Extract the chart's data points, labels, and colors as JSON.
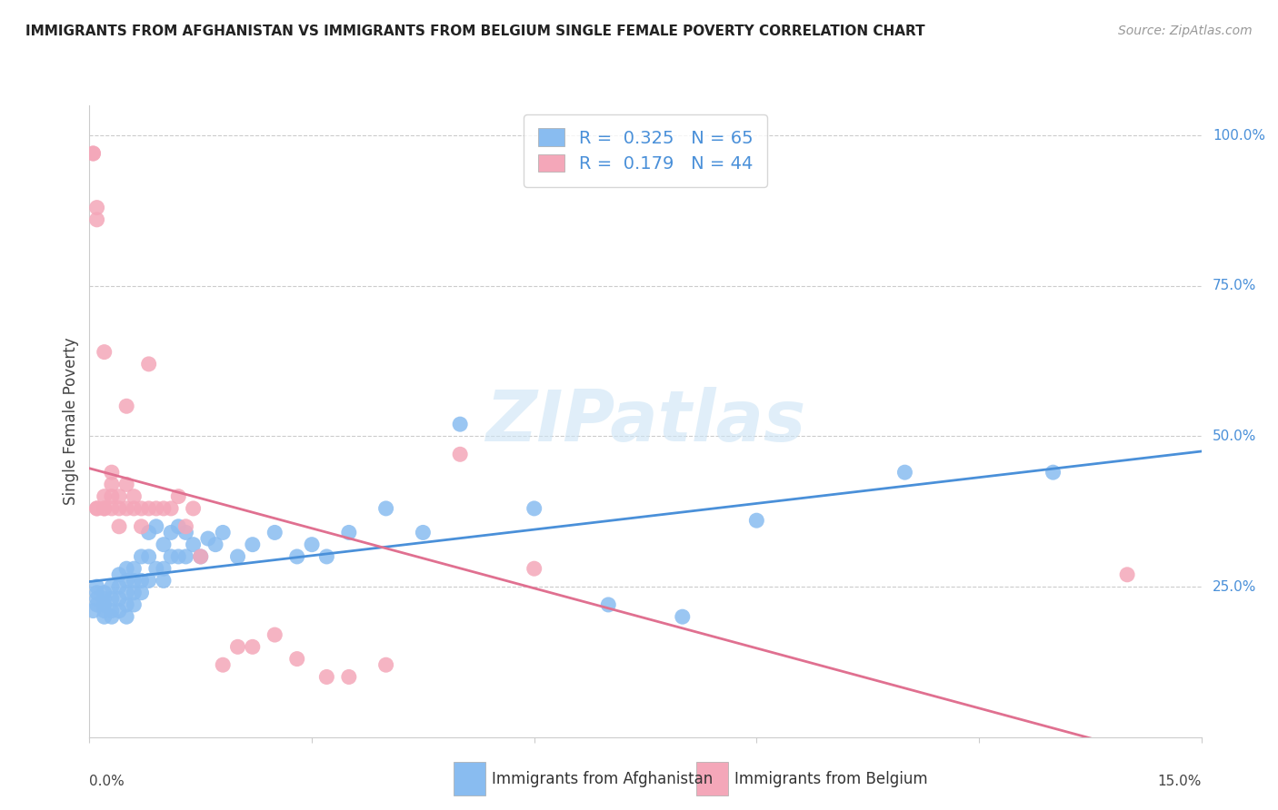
{
  "title": "IMMIGRANTS FROM AFGHANISTAN VS IMMIGRANTS FROM BELGIUM SINGLE FEMALE POVERTY CORRELATION CHART",
  "source": "Source: ZipAtlas.com",
  "ylabel": "Single Female Poverty",
  "ylabel_right_ticks": [
    "100.0%",
    "75.0%",
    "50.0%",
    "25.0%"
  ],
  "ylabel_right_vals": [
    1.0,
    0.75,
    0.5,
    0.25
  ],
  "xlim": [
    0.0,
    0.15
  ],
  "ylim": [
    0.0,
    1.05
  ],
  "afghanistan_color": "#89bcf0",
  "belgium_color": "#f4a7b9",
  "afghanistan_line_color": "#4a90d9",
  "belgium_line_color": "#e07090",
  "afghanistan_R": 0.325,
  "afghanistan_N": 65,
  "belgium_R": 0.179,
  "belgium_N": 44,
  "legend_label_afghanistan": "Immigrants from Afghanistan",
  "legend_label_belgium": "Immigrants from Belgium",
  "watermark": "ZIPatlas",
  "afghanistan_x": [
    0.0005,
    0.001,
    0.001,
    0.001,
    0.001,
    0.002,
    0.002,
    0.002,
    0.002,
    0.002,
    0.003,
    0.003,
    0.003,
    0.003,
    0.004,
    0.004,
    0.004,
    0.004,
    0.005,
    0.005,
    0.005,
    0.005,
    0.005,
    0.006,
    0.006,
    0.006,
    0.006,
    0.007,
    0.007,
    0.007,
    0.008,
    0.008,
    0.008,
    0.009,
    0.009,
    0.01,
    0.01,
    0.01,
    0.011,
    0.011,
    0.012,
    0.012,
    0.013,
    0.013,
    0.014,
    0.015,
    0.016,
    0.017,
    0.018,
    0.02,
    0.022,
    0.025,
    0.028,
    0.03,
    0.032,
    0.035,
    0.04,
    0.045,
    0.05,
    0.06,
    0.07,
    0.08,
    0.09,
    0.11,
    0.13
  ],
  "afghanistan_y": [
    0.21,
    0.22,
    0.23,
    0.24,
    0.25,
    0.2,
    0.21,
    0.22,
    0.23,
    0.24,
    0.2,
    0.21,
    0.23,
    0.25,
    0.21,
    0.23,
    0.25,
    0.27,
    0.2,
    0.22,
    0.24,
    0.26,
    0.28,
    0.22,
    0.24,
    0.26,
    0.28,
    0.24,
    0.26,
    0.3,
    0.26,
    0.3,
    0.34,
    0.28,
    0.35,
    0.26,
    0.28,
    0.32,
    0.3,
    0.34,
    0.3,
    0.35,
    0.3,
    0.34,
    0.32,
    0.3,
    0.33,
    0.32,
    0.34,
    0.3,
    0.32,
    0.34,
    0.3,
    0.32,
    0.3,
    0.34,
    0.38,
    0.34,
    0.52,
    0.38,
    0.22,
    0.2,
    0.36,
    0.44,
    0.44
  ],
  "belgium_x": [
    0.0005,
    0.0005,
    0.001,
    0.001,
    0.001,
    0.001,
    0.002,
    0.002,
    0.002,
    0.002,
    0.003,
    0.003,
    0.003,
    0.003,
    0.004,
    0.004,
    0.004,
    0.005,
    0.005,
    0.005,
    0.006,
    0.006,
    0.007,
    0.007,
    0.008,
    0.008,
    0.009,
    0.01,
    0.011,
    0.012,
    0.013,
    0.014,
    0.015,
    0.018,
    0.02,
    0.022,
    0.025,
    0.028,
    0.032,
    0.035,
    0.04,
    0.05,
    0.06,
    0.14
  ],
  "belgium_y": [
    0.97,
    0.97,
    0.86,
    0.88,
    0.38,
    0.38,
    0.64,
    0.38,
    0.38,
    0.4,
    0.38,
    0.4,
    0.42,
    0.44,
    0.38,
    0.4,
    0.35,
    0.38,
    0.42,
    0.55,
    0.38,
    0.4,
    0.35,
    0.38,
    0.62,
    0.38,
    0.38,
    0.38,
    0.38,
    0.4,
    0.35,
    0.38,
    0.3,
    0.12,
    0.15,
    0.15,
    0.17,
    0.13,
    0.1,
    0.1,
    0.12,
    0.47,
    0.28,
    0.27
  ]
}
